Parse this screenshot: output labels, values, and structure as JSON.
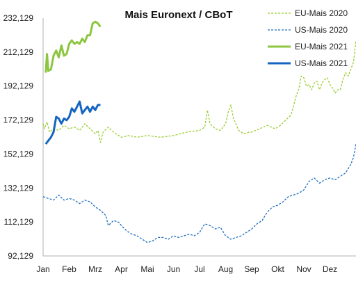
{
  "chart_data": {
    "type": "line",
    "title": "Mais Euronext / CBoT",
    "xlabel": "",
    "ylabel": "",
    "x_ticks": [
      "Jan",
      "Feb",
      "Mrz",
      "Apr",
      "Mai",
      "Jun",
      "Jul",
      "Aug",
      "Sep",
      "Okt",
      "Nov",
      "Dez"
    ],
    "y_ticks": [
      "232,129",
      "212,129",
      "192,129",
      "172,129",
      "152,129",
      "132,129",
      "112,129",
      "92,129"
    ],
    "ylim": [
      92.129,
      232.129
    ],
    "x_unit": "month (0 = Jan 1)",
    "grid": false,
    "legend_position": "top-right",
    "series": [
      {
        "name": "EU-Mais 2020",
        "color": "#9acd32",
        "style": "dashed",
        "points": [
          [
            0.0,
            170
          ],
          [
            0.05,
            167
          ],
          [
            0.15,
            171
          ],
          [
            0.25,
            165
          ],
          [
            0.4,
            167
          ],
          [
            0.6,
            166
          ],
          [
            0.8,
            169
          ],
          [
            1.0,
            167
          ],
          [
            1.2,
            168
          ],
          [
            1.4,
            166
          ],
          [
            1.6,
            170
          ],
          [
            1.8,
            167
          ],
          [
            2.0,
            164
          ],
          [
            2.1,
            166
          ],
          [
            2.2,
            159
          ],
          [
            2.3,
            165
          ],
          [
            2.5,
            168
          ],
          [
            2.7,
            165
          ],
          [
            2.9,
            163
          ],
          [
            3.0,
            162
          ],
          [
            3.3,
            163
          ],
          [
            3.6,
            162
          ],
          [
            4.0,
            163
          ],
          [
            4.5,
            162
          ],
          [
            5.0,
            163
          ],
          [
            5.5,
            165
          ],
          [
            6.0,
            166
          ],
          [
            6.2,
            168
          ],
          [
            6.3,
            178
          ],
          [
            6.4,
            170
          ],
          [
            6.6,
            167
          ],
          [
            6.8,
            166
          ],
          [
            7.0,
            170
          ],
          [
            7.1,
            177
          ],
          [
            7.2,
            181
          ],
          [
            7.3,
            173
          ],
          [
            7.5,
            166
          ],
          [
            7.7,
            164
          ],
          [
            7.9,
            165
          ],
          [
            8.0,
            165
          ],
          [
            8.3,
            167
          ],
          [
            8.6,
            169
          ],
          [
            8.9,
            167
          ],
          [
            9.1,
            169
          ],
          [
            9.3,
            172
          ],
          [
            9.5,
            175
          ],
          [
            9.6,
            180
          ],
          [
            9.7,
            186
          ],
          [
            9.8,
            190
          ],
          [
            9.9,
            198
          ],
          [
            10.0,
            197
          ],
          [
            10.1,
            192
          ],
          [
            10.2,
            193
          ],
          [
            10.3,
            190
          ],
          [
            10.4,
            194
          ],
          [
            10.5,
            195
          ],
          [
            10.6,
            190
          ],
          [
            10.7,
            194
          ],
          [
            10.8,
            196
          ],
          [
            10.9,
            197
          ],
          [
            11.0,
            193
          ],
          [
            11.1,
            191
          ],
          [
            11.2,
            188
          ],
          [
            11.3,
            190
          ],
          [
            11.4,
            190
          ],
          [
            11.5,
            196
          ],
          [
            11.6,
            200
          ],
          [
            11.7,
            198
          ],
          [
            11.8,
            202
          ],
          [
            11.9,
            206
          ],
          [
            12.0,
            219
          ]
        ]
      },
      {
        "name": "US-Mais 2020",
        "color": "#1f6fbf",
        "style": "dashed",
        "points": [
          [
            0.0,
            127
          ],
          [
            0.2,
            126
          ],
          [
            0.4,
            125
          ],
          [
            0.6,
            128
          ],
          [
            0.8,
            125
          ],
          [
            1.0,
            126
          ],
          [
            1.2,
            125
          ],
          [
            1.4,
            123
          ],
          [
            1.6,
            125
          ],
          [
            1.8,
            124
          ],
          [
            2.0,
            121
          ],
          [
            2.2,
            119
          ],
          [
            2.4,
            116
          ],
          [
            2.5,
            110
          ],
          [
            2.7,
            113
          ],
          [
            2.9,
            112
          ],
          [
            3.0,
            110
          ],
          [
            3.2,
            107
          ],
          [
            3.4,
            105
          ],
          [
            3.6,
            104
          ],
          [
            3.8,
            102
          ],
          [
            4.0,
            100
          ],
          [
            4.2,
            101
          ],
          [
            4.4,
            103
          ],
          [
            4.6,
            103
          ],
          [
            4.8,
            102
          ],
          [
            5.0,
            104
          ],
          [
            5.2,
            103
          ],
          [
            5.4,
            104
          ],
          [
            5.6,
            105
          ],
          [
            5.8,
            104
          ],
          [
            6.0,
            106
          ],
          [
            6.2,
            111
          ],
          [
            6.4,
            110
          ],
          [
            6.6,
            108
          ],
          [
            6.8,
            109
          ],
          [
            7.0,
            104
          ],
          [
            7.2,
            102
          ],
          [
            7.4,
            103
          ],
          [
            7.6,
            104
          ],
          [
            7.8,
            106
          ],
          [
            8.0,
            108
          ],
          [
            8.2,
            111
          ],
          [
            8.4,
            113
          ],
          [
            8.6,
            118
          ],
          [
            8.8,
            121
          ],
          [
            9.0,
            122
          ],
          [
            9.2,
            124
          ],
          [
            9.4,
            127
          ],
          [
            9.6,
            128
          ],
          [
            9.8,
            129
          ],
          [
            10.0,
            131
          ],
          [
            10.2,
            136
          ],
          [
            10.4,
            138
          ],
          [
            10.6,
            135
          ],
          [
            10.8,
            137
          ],
          [
            11.0,
            138
          ],
          [
            11.2,
            137
          ],
          [
            11.4,
            139
          ],
          [
            11.6,
            141
          ],
          [
            11.8,
            146
          ],
          [
            11.9,
            150
          ],
          [
            12.0,
            158
          ]
        ]
      },
      {
        "name": "EU-Mais 2021",
        "color": "#8cc63f",
        "style": "solid",
        "points": [
          [
            0.1,
            200
          ],
          [
            0.15,
            211
          ],
          [
            0.2,
            201
          ],
          [
            0.3,
            202
          ],
          [
            0.4,
            210
          ],
          [
            0.5,
            213
          ],
          [
            0.6,
            209
          ],
          [
            0.7,
            216
          ],
          [
            0.8,
            210
          ],
          [
            0.9,
            211
          ],
          [
            1.0,
            217
          ],
          [
            1.1,
            219
          ],
          [
            1.2,
            217
          ],
          [
            1.3,
            218
          ],
          [
            1.4,
            217
          ],
          [
            1.5,
            220
          ],
          [
            1.6,
            218
          ],
          [
            1.7,
            222
          ],
          [
            1.8,
            222
          ],
          [
            1.9,
            229
          ],
          [
            2.0,
            230
          ],
          [
            2.1,
            229
          ],
          [
            2.2,
            227
          ]
        ]
      },
      {
        "name": "US-Mais 2021",
        "color": "#1565c0",
        "style": "solid",
        "points": [
          [
            0.1,
            158
          ],
          [
            0.2,
            160
          ],
          [
            0.3,
            162
          ],
          [
            0.4,
            165
          ],
          [
            0.5,
            174
          ],
          [
            0.6,
            173
          ],
          [
            0.7,
            170
          ],
          [
            0.8,
            173
          ],
          [
            0.9,
            172
          ],
          [
            1.0,
            174
          ],
          [
            1.1,
            179
          ],
          [
            1.2,
            177
          ],
          [
            1.3,
            180
          ],
          [
            1.4,
            183
          ],
          [
            1.5,
            176
          ],
          [
            1.6,
            178
          ],
          [
            1.7,
            180
          ],
          [
            1.8,
            177
          ],
          [
            1.9,
            180
          ],
          [
            2.0,
            178
          ],
          [
            2.1,
            181
          ],
          [
            2.2,
            181
          ]
        ]
      }
    ]
  }
}
